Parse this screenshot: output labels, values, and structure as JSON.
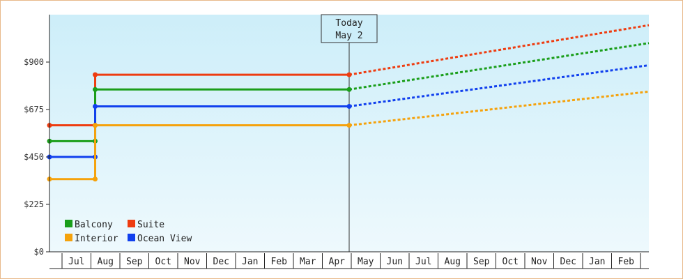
{
  "chart_data": {
    "type": "line",
    "title": "",
    "xlabel": "",
    "ylabel": "",
    "y_ticks": [
      "$0",
      "$225",
      "$450",
      "$675",
      "$900"
    ],
    "y_tick_values": [
      0,
      225,
      450,
      675,
      900
    ],
    "ylim": [
      0,
      1125
    ],
    "x_month_labels": [
      "Jul",
      "Aug",
      "Sep",
      "Oct",
      "Nov",
      "Dec",
      "Jan",
      "Feb",
      "Mar",
      "Apr",
      "May",
      "Jun",
      "Jul",
      "Aug",
      "Sep",
      "Oct",
      "Nov",
      "Dec",
      "Jan",
      "Feb"
    ],
    "x_month_slots": [
      1,
      2,
      3,
      4,
      5,
      6,
      7,
      8,
      9,
      10,
      11,
      12,
      13,
      14,
      15,
      16,
      17,
      18,
      19,
      20
    ],
    "xlim": [
      0,
      21
    ],
    "today": {
      "line1": "Today",
      "line2": "May 2",
      "x": 10.5
    },
    "grid": false,
    "legend_placement": "bottom-left",
    "series": [
      {
        "name": "Suite",
        "color": "#ee3c10",
        "actual": [
          [
            0,
            600
          ],
          [
            1.6,
            600
          ],
          [
            1.6,
            840
          ],
          [
            10.5,
            840
          ]
        ],
        "actual_points": [
          [
            0,
            600
          ],
          [
            1.6,
            600
          ],
          [
            1.6,
            840
          ],
          [
            10.5,
            840
          ]
        ],
        "forecast": [
          [
            10.5,
            840
          ],
          [
            21,
            1075
          ]
        ]
      },
      {
        "name": "Balcony",
        "color": "#1a9e1a",
        "actual": [
          [
            0,
            525
          ],
          [
            1.6,
            525
          ],
          [
            1.6,
            770
          ],
          [
            10.5,
            770
          ]
        ],
        "actual_points": [
          [
            0,
            525
          ],
          [
            1.6,
            525
          ],
          [
            1.6,
            770
          ],
          [
            10.5,
            770
          ]
        ],
        "forecast": [
          [
            10.5,
            770
          ],
          [
            21,
            990
          ]
        ]
      },
      {
        "name": "Ocean View",
        "color": "#1140ee",
        "actual": [
          [
            0,
            450
          ],
          [
            1.6,
            450
          ],
          [
            1.6,
            690
          ],
          [
            10.5,
            690
          ]
        ],
        "actual_points": [
          [
            0,
            450
          ],
          [
            1.6,
            450
          ],
          [
            1.6,
            690
          ],
          [
            10.5,
            690
          ]
        ],
        "forecast": [
          [
            10.5,
            690
          ],
          [
            21,
            885
          ]
        ]
      },
      {
        "name": "Interior",
        "color": "#f5a20c",
        "actual": [
          [
            0,
            345
          ],
          [
            1.6,
            345
          ],
          [
            1.6,
            600
          ],
          [
            10.5,
            600
          ]
        ],
        "actual_points": [
          [
            0,
            345
          ],
          [
            1.6,
            345
          ],
          [
            1.6,
            600
          ],
          [
            10.5,
            600
          ]
        ],
        "forecast": [
          [
            10.5,
            600
          ],
          [
            21,
            760
          ]
        ]
      }
    ],
    "legend": [
      {
        "name": "Balcony",
        "color": "#1a9e1a"
      },
      {
        "name": "Suite",
        "color": "#ee3c10"
      },
      {
        "name": "Interior",
        "color": "#f5a20c"
      },
      {
        "name": "Ocean View",
        "color": "#1140ee"
      }
    ],
    "colors": {
      "plot_top": "#cdeef9",
      "plot_bottom": "#eef9fd",
      "axis": "#222222",
      "frame": "#e8b98a"
    }
  }
}
